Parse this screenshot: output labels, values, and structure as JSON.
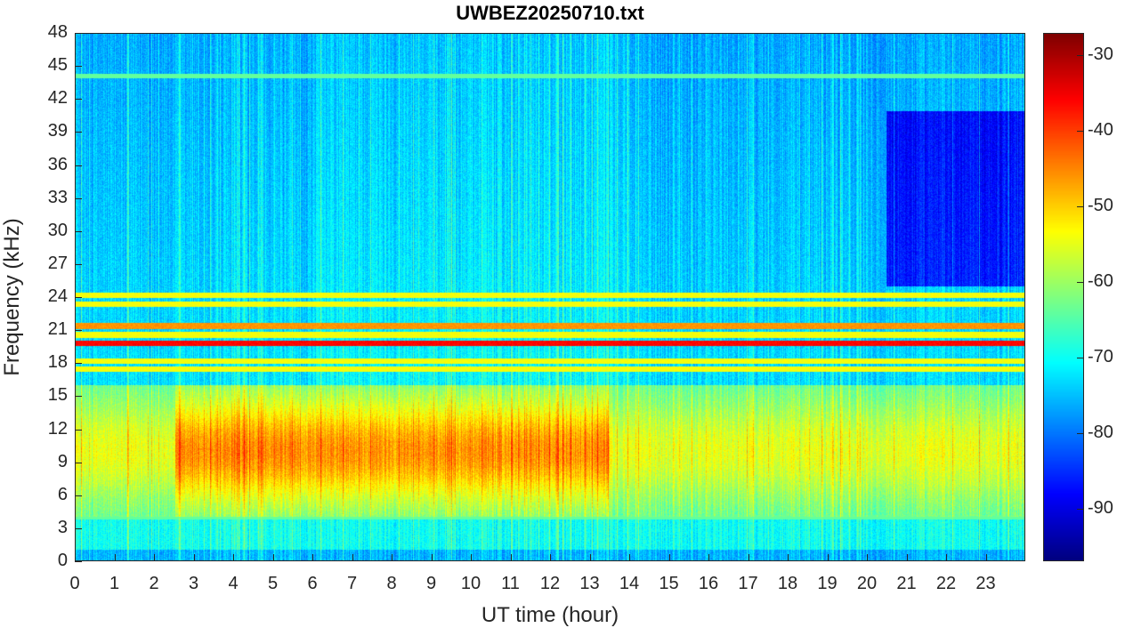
{
  "chart_data": {
    "type": "heatmap",
    "title": "UWBEZ20250710.txt",
    "xlabel": "UT time (hour)",
    "ylabel": "Frequency (kHz)",
    "xlim": [
      0,
      24
    ],
    "ylim": [
      0,
      48
    ],
    "xticks": [
      "0",
      "1",
      "2",
      "3",
      "4",
      "5",
      "6",
      "7",
      "8",
      "9",
      "10",
      "11",
      "12",
      "13",
      "14",
      "15",
      "16",
      "17",
      "18",
      "19",
      "20",
      "21",
      "22",
      "23"
    ],
    "yticks": [
      "0",
      "3",
      "6",
      "9",
      "12",
      "15",
      "18",
      "21",
      "24",
      "27",
      "30",
      "33",
      "36",
      "39",
      "42",
      "45",
      "48"
    ],
    "colorbar": {
      "colormap": "jet",
      "range": [
        -97,
        -27
      ],
      "ticks": [
        "-90",
        "-80",
        "-70",
        "-60",
        "-50",
        "-40",
        "-30"
      ]
    },
    "narrowband_lines_khz": [
      19.8,
      21.4,
      18.2,
      24.2,
      23.4,
      20.6,
      17.5
    ],
    "features": {
      "broadband_noise_band_khz": [
        4,
        16
      ],
      "broadband_noise_peak_hours": [
        3,
        13
      ],
      "quiet_high_band_after_hour": 20.5
    }
  }
}
